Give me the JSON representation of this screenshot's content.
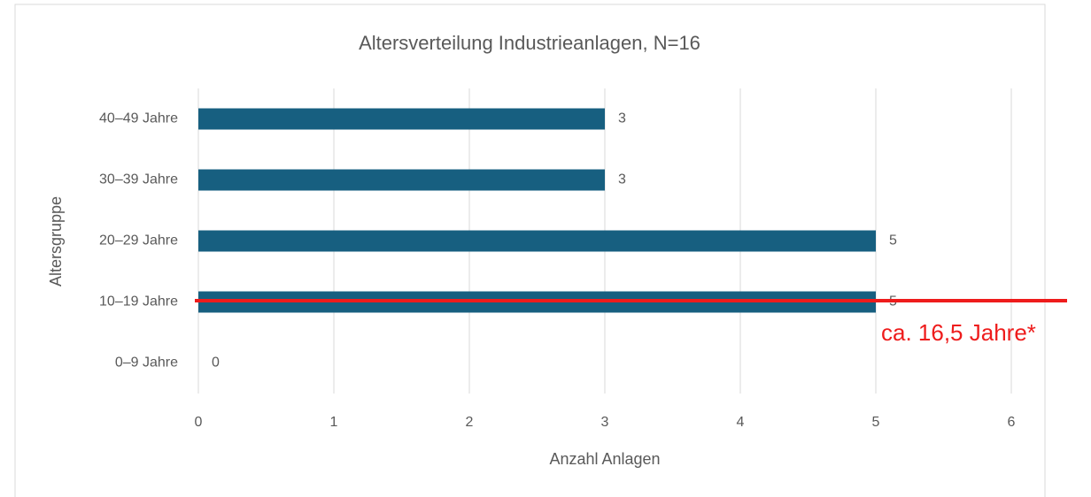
{
  "chart_data": {
    "type": "bar",
    "orientation": "horizontal",
    "title": "Altersverteilung Industrieanlagen, N=16",
    "x_label": "Anzahl Anlagen",
    "y_label": "Altersgruppe",
    "categories": [
      "0–9 Jahre",
      "10–19 Jahre",
      "20–29 Jahre",
      "30–39 Jahre",
      "40–49 Jahre"
    ],
    "values": [
      0,
      5,
      5,
      3,
      3
    ],
    "color": "#175f80",
    "xlim": [
      0,
      6
    ],
    "xticks": [
      0,
      1,
      2,
      3,
      4,
      5,
      6
    ],
    "grid": true,
    "annotation": "ca. 16,5 Jahre*"
  }
}
